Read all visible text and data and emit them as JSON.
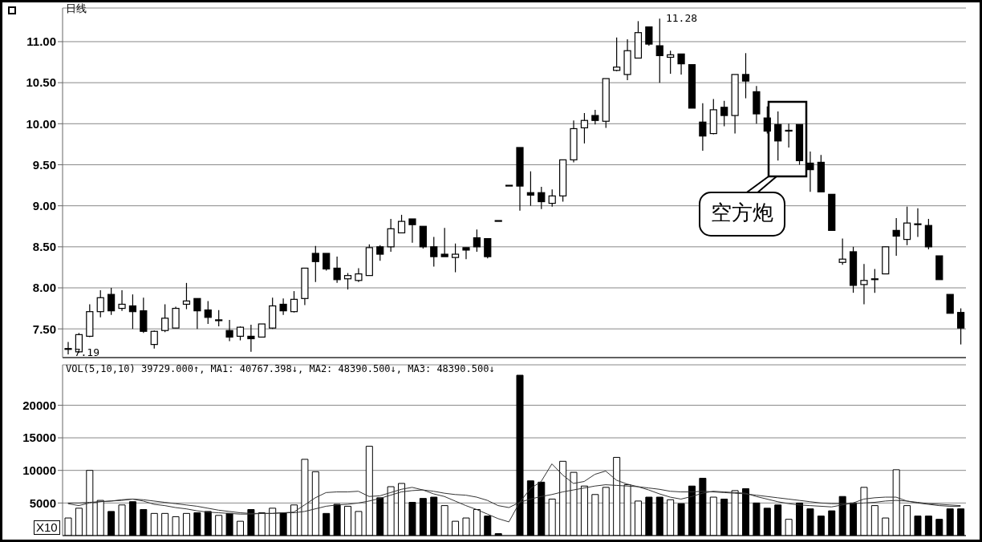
{
  "chart_data": [
    {
      "type": "candlestick",
      "title": "日线",
      "color": "#000000",
      "grid": "y",
      "tick_labels": "y",
      "categories": [
        null,
        null,
        null,
        null,
        null,
        null,
        null,
        null,
        null,
        null,
        null,
        null,
        null,
        null,
        null,
        null,
        null,
        null,
        null,
        null,
        null,
        null,
        null,
        null,
        null,
        null,
        null,
        null,
        null,
        null,
        null,
        null,
        null,
        null,
        null,
        null,
        null,
        null,
        null,
        null,
        null,
        null,
        null,
        null,
        null,
        null,
        null,
        null,
        null,
        null,
        null,
        null,
        null,
        null,
        null,
        null,
        null,
        null,
        null,
        null,
        null,
        null,
        null,
        null,
        null,
        null,
        null,
        null,
        null,
        null,
        null,
        null,
        null,
        null,
        null,
        null,
        null,
        null,
        null,
        null,
        null,
        null,
        null,
        null
      ],
      "ohlc": [
        [
          7.26,
          7.34,
          7.19,
          7.25
        ],
        [
          7.22,
          7.45,
          7.21,
          7.43
        ],
        [
          7.41,
          7.8,
          7.4,
          7.71
        ],
        [
          7.71,
          7.97,
          7.64,
          7.88
        ],
        [
          7.92,
          8.0,
          7.67,
          7.72
        ],
        [
          7.75,
          7.97,
          7.72,
          7.8
        ],
        [
          7.78,
          7.92,
          7.5,
          7.71
        ],
        [
          7.72,
          7.88,
          7.45,
          7.47
        ],
        [
          7.31,
          7.48,
          7.26,
          7.47
        ],
        [
          7.48,
          7.8,
          7.46,
          7.63
        ],
        [
          7.51,
          7.77,
          7.51,
          7.75
        ],
        [
          7.8,
          8.06,
          7.74,
          7.84
        ],
        [
          7.87,
          7.87,
          7.5,
          7.72
        ],
        [
          7.73,
          7.84,
          7.56,
          7.64
        ],
        [
          7.61,
          7.73,
          7.53,
          7.6
        ],
        [
          7.48,
          7.61,
          7.35,
          7.4
        ],
        [
          7.41,
          7.53,
          7.36,
          7.52
        ],
        [
          7.41,
          7.55,
          7.22,
          7.38
        ],
        [
          7.4,
          7.56,
          7.4,
          7.56
        ],
        [
          7.51,
          7.88,
          7.5,
          7.78
        ],
        [
          7.8,
          7.87,
          7.67,
          7.72
        ],
        [
          7.71,
          7.96,
          7.7,
          7.86
        ],
        [
          7.87,
          8.24,
          7.79,
          8.24
        ],
        [
          8.42,
          8.51,
          8.07,
          8.32
        ],
        [
          8.42,
          8.42,
          8.21,
          8.23
        ],
        [
          8.24,
          8.38,
          8.06,
          8.1
        ],
        [
          8.11,
          8.18,
          7.98,
          8.15
        ],
        [
          8.09,
          8.24,
          8.07,
          8.17
        ],
        [
          8.15,
          8.53,
          8.15,
          8.49
        ],
        [
          8.5,
          8.52,
          8.33,
          8.41
        ],
        [
          8.5,
          8.84,
          8.44,
          8.72
        ],
        [
          8.67,
          8.89,
          8.67,
          8.81
        ],
        [
          8.84,
          8.84,
          8.55,
          8.77
        ],
        [
          8.75,
          8.75,
          8.48,
          8.5
        ],
        [
          8.5,
          8.62,
          8.26,
          8.38
        ],
        [
          8.41,
          8.73,
          8.38,
          8.38
        ],
        [
          8.37,
          8.54,
          8.19,
          8.41
        ],
        [
          8.49,
          8.49,
          8.35,
          8.46
        ],
        [
          8.61,
          8.71,
          8.44,
          8.5
        ],
        [
          8.6,
          8.6,
          8.36,
          8.38
        ],
        [
          8.82,
          8.82,
          8.82,
          8.82
        ],
        [
          9.25,
          9.25,
          9.25,
          9.25
        ],
        [
          9.71,
          9.71,
          8.94,
          9.24
        ],
        [
          9.16,
          9.42,
          9.0,
          9.13
        ],
        [
          9.16,
          9.23,
          8.96,
          9.05
        ],
        [
          9.03,
          9.2,
          8.99,
          9.12
        ],
        [
          9.12,
          9.56,
          9.05,
          9.56
        ],
        [
          9.56,
          10.04,
          9.53,
          9.94
        ],
        [
          9.95,
          10.13,
          9.76,
          10.04
        ],
        [
          10.1,
          10.17,
          9.99,
          10.04
        ],
        [
          10.03,
          10.55,
          9.95,
          10.55
        ],
        [
          10.65,
          11.05,
          10.64,
          10.69
        ],
        [
          10.6,
          11.03,
          10.53,
          10.89
        ],
        [
          10.8,
          11.25,
          10.8,
          11.11
        ],
        [
          11.18,
          11.18,
          10.95,
          10.97
        ],
        [
          10.95,
          11.28,
          10.5,
          10.83
        ],
        [
          10.81,
          10.89,
          10.61,
          10.84
        ],
        [
          10.85,
          10.85,
          10.6,
          10.73
        ],
        [
          10.72,
          10.72,
          10.19,
          10.19
        ],
        [
          10.02,
          10.25,
          9.67,
          9.85
        ],
        [
          9.88,
          10.3,
          9.87,
          10.17
        ],
        [
          10.2,
          10.28,
          9.97,
          10.1
        ],
        [
          10.1,
          10.6,
          9.88,
          10.6
        ],
        [
          10.6,
          10.86,
          10.31,
          10.52
        ],
        [
          10.39,
          10.46,
          10.0,
          10.12
        ],
        [
          10.07,
          10.21,
          9.88,
          9.91
        ],
        [
          9.99,
          10.15,
          9.55,
          9.79
        ],
        [
          9.91,
          10.0,
          9.71,
          9.92
        ],
        [
          9.99,
          9.99,
          9.5,
          9.55
        ],
        [
          9.52,
          9.66,
          9.17,
          9.44
        ],
        [
          9.53,
          9.62,
          9.17,
          9.17
        ],
        [
          9.14,
          9.14,
          8.7,
          8.7
        ],
        [
          8.31,
          8.6,
          8.28,
          8.35
        ],
        [
          8.44,
          8.5,
          7.94,
          8.03
        ],
        [
          8.04,
          8.29,
          7.8,
          8.09
        ],
        [
          8.1,
          8.23,
          7.94,
          8.11
        ],
        [
          8.17,
          8.5,
          8.17,
          8.5
        ],
        [
          8.7,
          8.85,
          8.39,
          8.63
        ],
        [
          8.59,
          8.99,
          8.52,
          8.79
        ],
        [
          8.77,
          8.97,
          8.62,
          8.78
        ],
        [
          8.76,
          8.84,
          8.47,
          8.5
        ],
        [
          8.39,
          8.39,
          8.1,
          8.1
        ],
        [
          7.92,
          7.92,
          7.69,
          7.69
        ],
        [
          7.7,
          7.75,
          7.31,
          7.51
        ]
      ],
      "ylim": [
        7.15,
        11.41
      ],
      "yticks": [
        {
          "value": 7.5,
          "label": "7.50"
        },
        {
          "value": 8,
          "label": "8.00"
        },
        {
          "value": 8.5,
          "label": "8.50"
        },
        {
          "value": 9,
          "label": "9.00"
        },
        {
          "value": 9.5,
          "label": "9.50"
        },
        {
          "value": 10,
          "label": "10.00"
        },
        {
          "value": 10.5,
          "label": "10.50"
        },
        {
          "value": 11,
          "label": "11.00"
        }
      ],
      "annotations": [
        "11.28",
        "7.19",
        "空方炮"
      ]
    },
    {
      "type": "bar",
      "grid": "y",
      "tick_labels": "y",
      "categories": [
        null,
        null,
        null,
        null,
        null,
        null,
        null,
        null,
        null,
        null,
        null,
        null,
        null,
        null,
        null,
        null,
        null,
        null,
        null,
        null,
        null,
        null,
        null,
        null,
        null,
        null,
        null,
        null,
        null,
        null,
        null,
        null,
        null,
        null,
        null,
        null,
        null,
        null,
        null,
        null,
        null,
        null,
        null,
        null,
        null,
        null,
        null,
        null,
        null,
        null,
        null,
        null,
        null,
        null,
        null,
        null,
        null,
        null,
        null,
        null,
        null,
        null,
        null,
        null,
        null,
        null,
        null,
        null,
        null,
        null,
        null,
        null,
        null,
        null,
        null,
        null,
        null,
        null,
        null,
        null,
        null,
        null,
        null,
        null
      ],
      "series": [
        {
          "type": "bar",
          "values": [
            2700,
            4200,
            10000,
            5400,
            3700,
            4700,
            5200,
            4000,
            3400,
            3400,
            2900,
            3400,
            3500,
            3700,
            3100,
            3400,
            2200,
            4000,
            3500,
            4200,
            3500,
            4700,
            11700,
            9800,
            3400,
            4800,
            4500,
            3700,
            13700,
            5800,
            7500,
            8000,
            5100,
            5700,
            5900,
            4600,
            2200,
            2700,
            4000,
            3000,
            300,
            null,
            24600,
            8400,
            8200,
            5600,
            11400,
            9700,
            7600,
            6300,
            7400,
            12000,
            7800,
            5300,
            5900,
            5900,
            5500,
            4900,
            7600,
            8800,
            5900,
            5600,
            6900,
            7200,
            5000,
            4200,
            4700,
            2500,
            5000,
            4100,
            3000,
            3800,
            6000,
            5000,
            7400,
            4600,
            2700,
            10100,
            4600,
            3000,
            3000,
            2500,
            4100,
            4100
          ],
          "colors": [
            "#ffffff",
            "#ffffff",
            "#ffffff",
            "#ffffff",
            "#000000",
            "#ffffff",
            "#000000",
            "#000000",
            "#ffffff",
            "#ffffff",
            "#ffffff",
            "#ffffff",
            "#000000",
            "#000000",
            "#ffffff",
            "#000000",
            "#ffffff",
            "#000000",
            "#ffffff",
            "#ffffff",
            "#000000",
            "#ffffff",
            "#ffffff",
            "#ffffff",
            "#000000",
            "#000000",
            "#ffffff",
            "#ffffff",
            "#ffffff",
            "#000000",
            "#ffffff",
            "#ffffff",
            "#000000",
            "#000000",
            "#000000",
            "#ffffff",
            "#ffffff",
            "#ffffff",
            "#ffffff",
            "#000000",
            "#000000",
            "#000000",
            "#000000",
            "#000000",
            "#000000",
            "#ffffff",
            "#ffffff",
            "#ffffff",
            "#ffffff",
            "#ffffff",
            "#ffffff",
            "#ffffff",
            "#ffffff",
            "#ffffff",
            "#000000",
            "#000000",
            "#ffffff",
            "#000000",
            "#000000",
            "#000000",
            "#ffffff",
            "#000000",
            "#ffffff",
            "#000000",
            "#000000",
            "#000000",
            "#000000",
            "#ffffff",
            "#000000",
            "#000000",
            "#000000",
            "#000000",
            "#000000",
            "#000000",
            "#ffffff",
            "#ffffff",
            "#ffffff",
            "#ffffff",
            "#ffffff",
            "#000000",
            "#000000",
            "#000000",
            "#000000",
            "#000000"
          ]
        },
        {
          "type": "line",
          "color": "#333333",
          "values": [
            4900,
            4600,
            5000,
            5200,
            5300,
            5500,
            5600,
            5300,
            4800,
            4600,
            4300,
            4100,
            3800,
            3600,
            3500,
            3400,
            3300,
            3300,
            3400,
            3400,
            3500,
            3600,
            4700,
            5800,
            6600,
            6700,
            6700,
            6800,
            6000,
            6100,
            6600,
            7100,
            7400,
            7000,
            6400,
            6000,
            5300,
            4600,
            4000,
            3300,
            2600,
            2100,
            5100,
            7200,
            8300,
            11000,
            9300,
            8000,
            8300,
            9400,
            9900,
            8500,
            7900,
            7500,
            7000,
            6400,
            5900,
            5600,
            6000,
            6500,
            6800,
            6700,
            6600,
            6500,
            6000,
            5600,
            5200,
            4900,
            4700,
            4600,
            4500,
            4400,
            4700,
            5000,
            5600,
            5800,
            5900,
            5900,
            5300,
            5000,
            4800,
            4600,
            4500,
            4500
          ]
        },
        {
          "type": "line",
          "color": "#333333",
          "values": [
            5000,
            5000,
            5100,
            5200,
            5300,
            5400,
            5600,
            5500,
            5300,
            5100,
            4900,
            4700,
            4500,
            4200,
            3900,
            3700,
            3500,
            3400,
            3400,
            3400,
            3500,
            3500,
            3700,
            4100,
            4500,
            4700,
            4800,
            5000,
            5300,
            5700,
            6200,
            6700,
            6900,
            7000,
            6800,
            6500,
            6300,
            6200,
            5900,
            5400,
            4600,
            4300,
            5100,
            5600,
            6000,
            6300,
            6700,
            7000,
            7300,
            7600,
            7800,
            7700,
            7600,
            7500,
            7300,
            7100,
            6800,
            6700,
            6700,
            6800,
            6700,
            6600,
            6500,
            6400,
            6200,
            6000,
            5800,
            5600,
            5400,
            5200,
            5000,
            4900,
            4900,
            4900,
            5000,
            5100,
            5300,
            5400,
            5300,
            5100,
            4900,
            4800,
            4700,
            4600
          ]
        }
      ],
      "ylim": [
        0,
        26200
      ],
      "yticks": [
        5000,
        10000,
        15000,
        20000
      ],
      "annotations": [
        "VOL(5,10,10) 39729.000↑, MA1: 40767.398↓, MA2: 48390.500↓, MA3: 48390.500↓",
        "X10"
      ]
    }
  ]
}
